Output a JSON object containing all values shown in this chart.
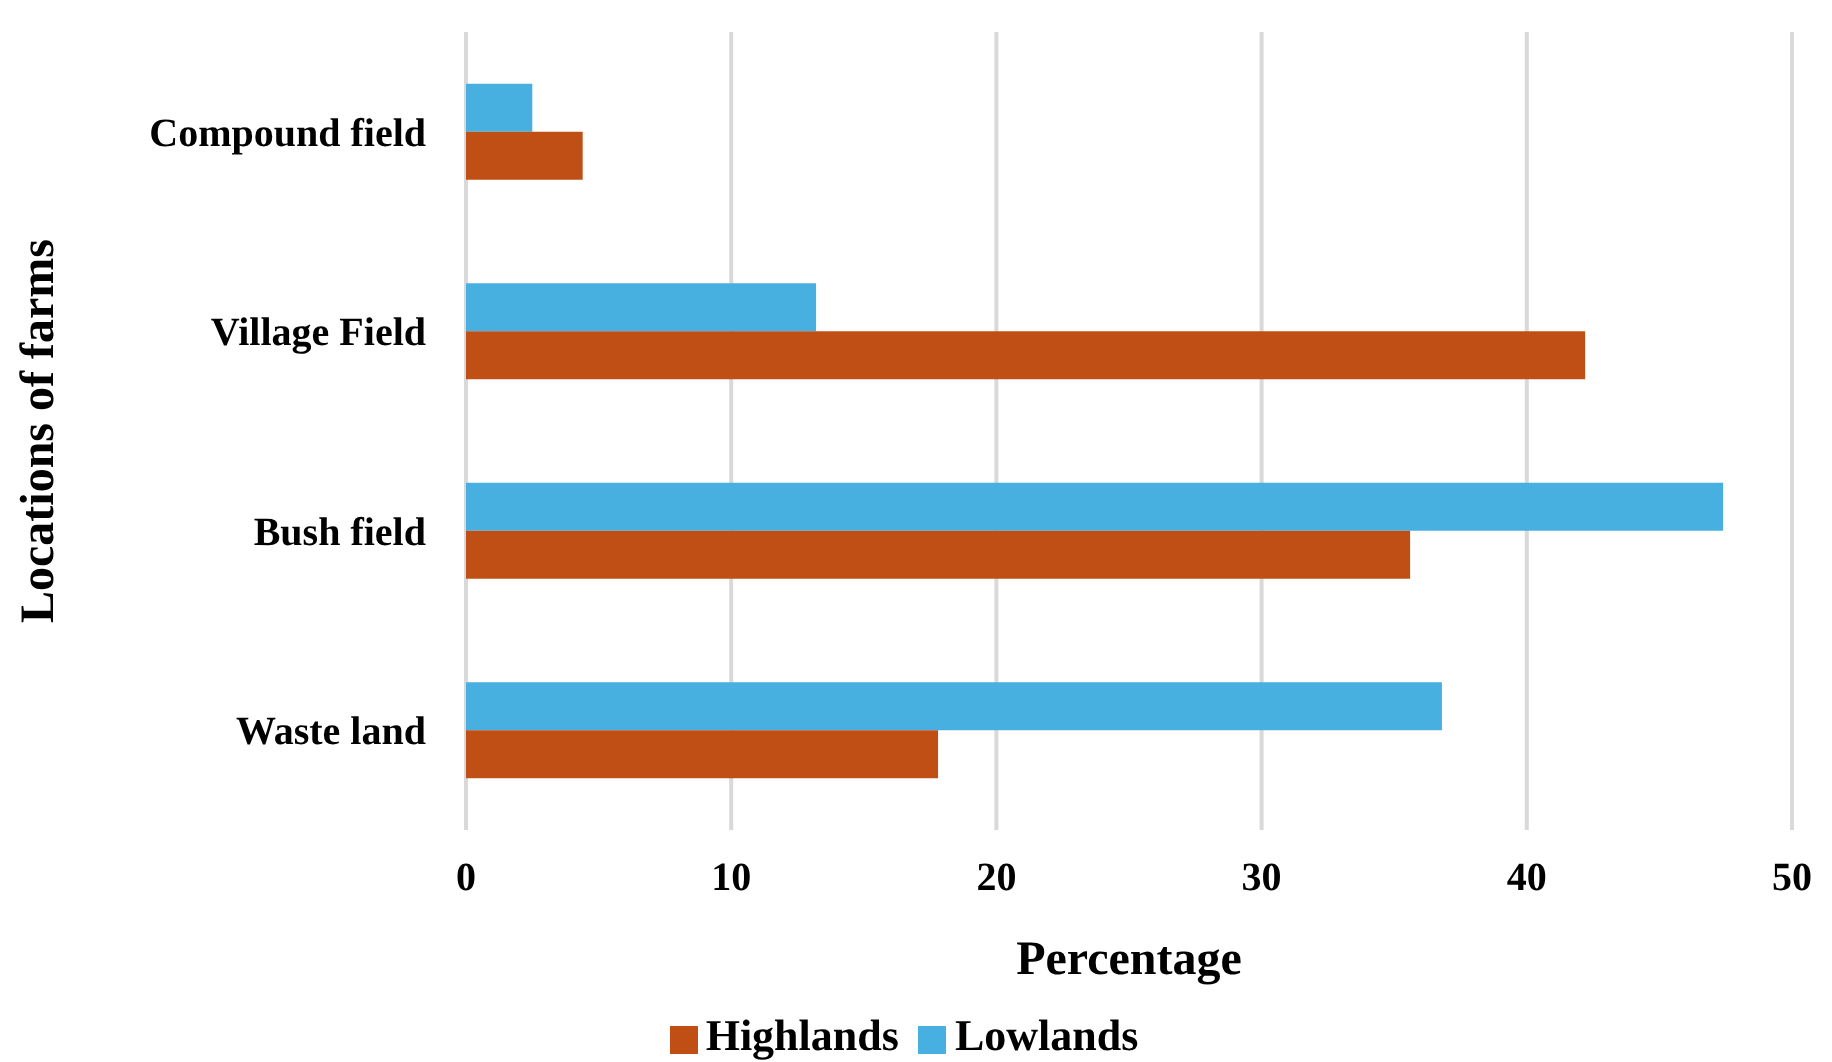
{
  "chart_data": {
    "type": "bar",
    "orientation": "horizontal",
    "xlabel": "Percentage",
    "ylabel": "Locations of farms",
    "categories": [
      "Compound field",
      "Village Field",
      "Bush field",
      "Waste land"
    ],
    "series": [
      {
        "name": "Lowlands",
        "color": "#47b0e0",
        "values": [
          2.5,
          13.2,
          47.4,
          36.8
        ]
      },
      {
        "name": "Highlands",
        "color": "#c04f16",
        "values": [
          4.4,
          42.2,
          35.6,
          17.8
        ]
      }
    ],
    "xlim": [
      0,
      50
    ],
    "xticks": [
      0,
      10,
      20,
      30,
      40,
      50
    ],
    "grid": "x",
    "legend": "bottom"
  }
}
